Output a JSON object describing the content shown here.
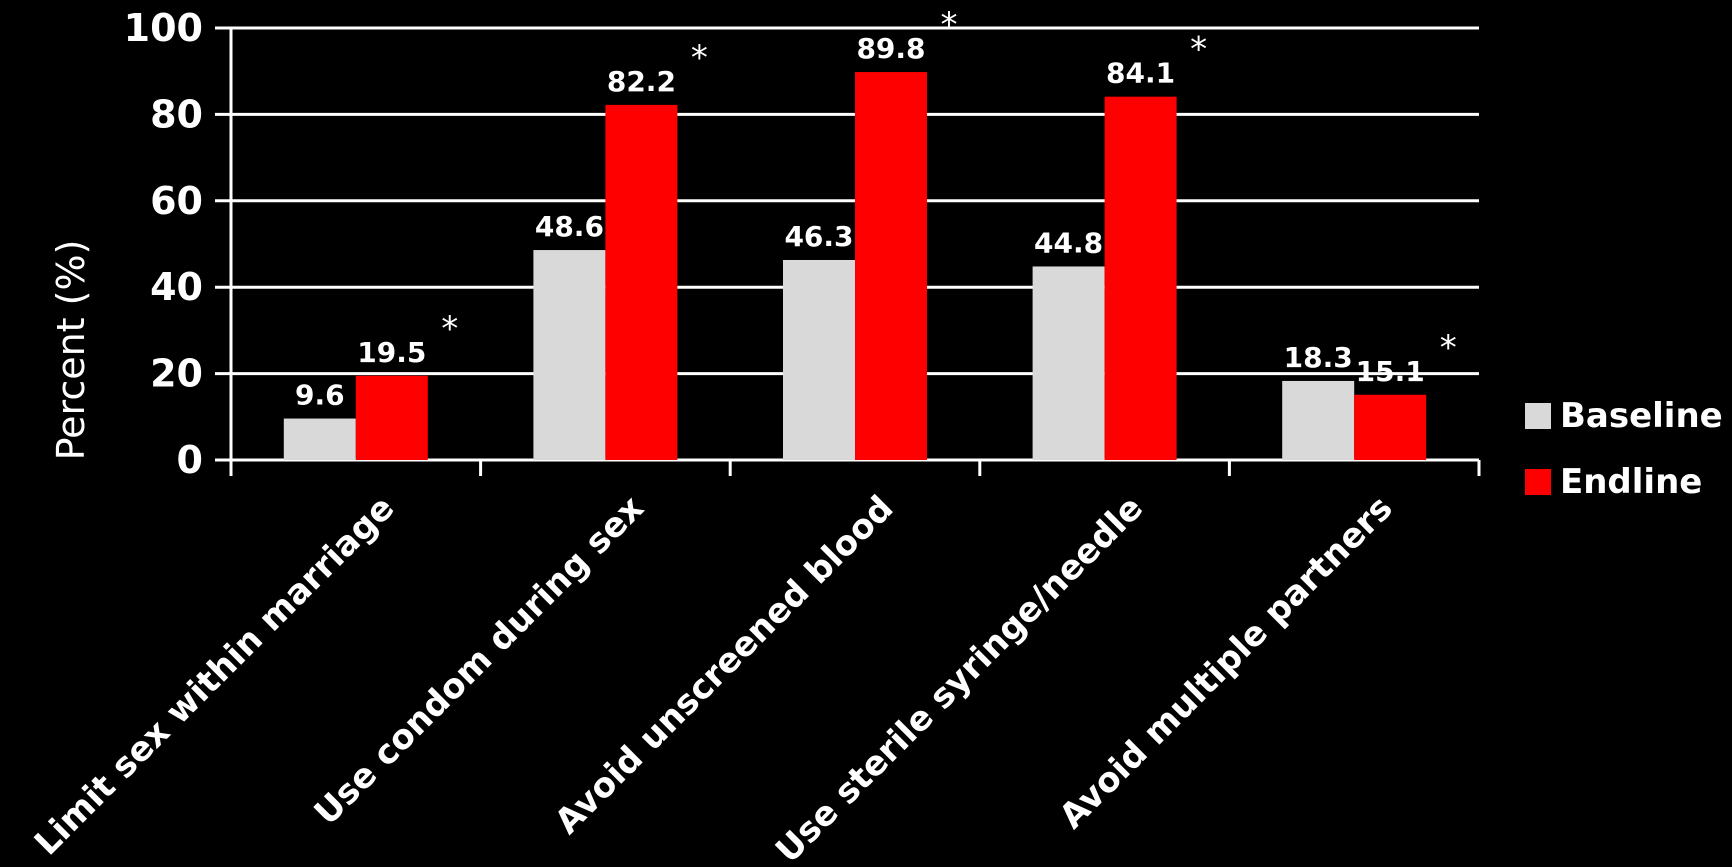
{
  "chart_data": {
    "type": "bar",
    "title": "",
    "xlabel": "",
    "ylabel": "Percent (%)",
    "ylim": [
      0,
      100
    ],
    "yticks": [
      "0",
      "20",
      "40",
      "60",
      "80",
      "100"
    ],
    "grid": true,
    "legend_position": "right",
    "categories": [
      "Limit sex within marriage",
      "Use condom during sex",
      "Avoid unscreened blood",
      "Use sterile syringe/needle",
      "Avoid multiple partners"
    ],
    "series": [
      {
        "name": "Baseline",
        "color": "#d9d9d9",
        "values": [
          9.6,
          48.6,
          46.3,
          44.8,
          18.3
        ],
        "labels": [
          "9.6",
          "48.6",
          "46.3",
          "44.8",
          "18.3"
        ]
      },
      {
        "name": "Endline",
        "color": "#ff0000",
        "values": [
          19.5,
          82.2,
          89.8,
          84.1,
          15.1
        ],
        "labels": [
          "19.5",
          "82.2",
          "89.8",
          "84.1",
          "15.1"
        ]
      }
    ],
    "annotations": [
      "*",
      "*",
      "*",
      "*",
      "*"
    ]
  }
}
